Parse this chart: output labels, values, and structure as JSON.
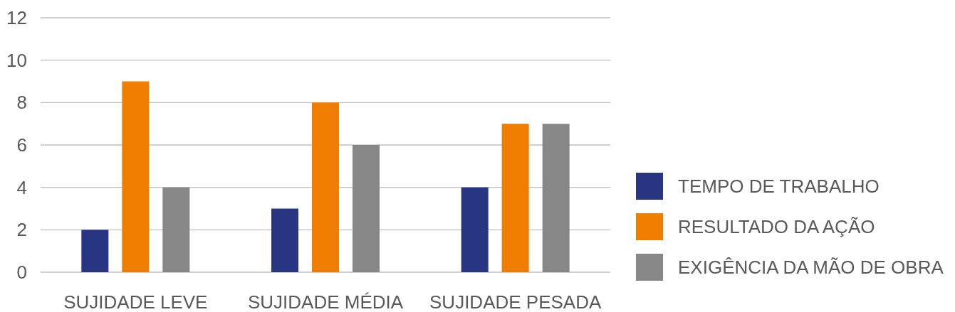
{
  "chart_data": {
    "type": "bar",
    "categories": [
      "SUJIDADE LEVE",
      "SUJIDADE MÉDIA",
      "SUJIDADE PESADA"
    ],
    "series": [
      {
        "name": "TEMPO DE TRABALHO",
        "color": "#283583",
        "values": [
          2,
          3,
          4
        ]
      },
      {
        "name": "RESULTADO DA AÇÃO",
        "color": "#ef7d00",
        "values": [
          9,
          8,
          7
        ]
      },
      {
        "name": "EXIGÊNCIA DA MÃO DE OBRA",
        "color": "#878787",
        "values": [
          4,
          6,
          7
        ]
      }
    ],
    "ylim": [
      0,
      12
    ],
    "yticks": [
      0,
      2,
      4,
      6,
      8,
      10,
      12
    ],
    "grid": "y",
    "legend": "right"
  }
}
